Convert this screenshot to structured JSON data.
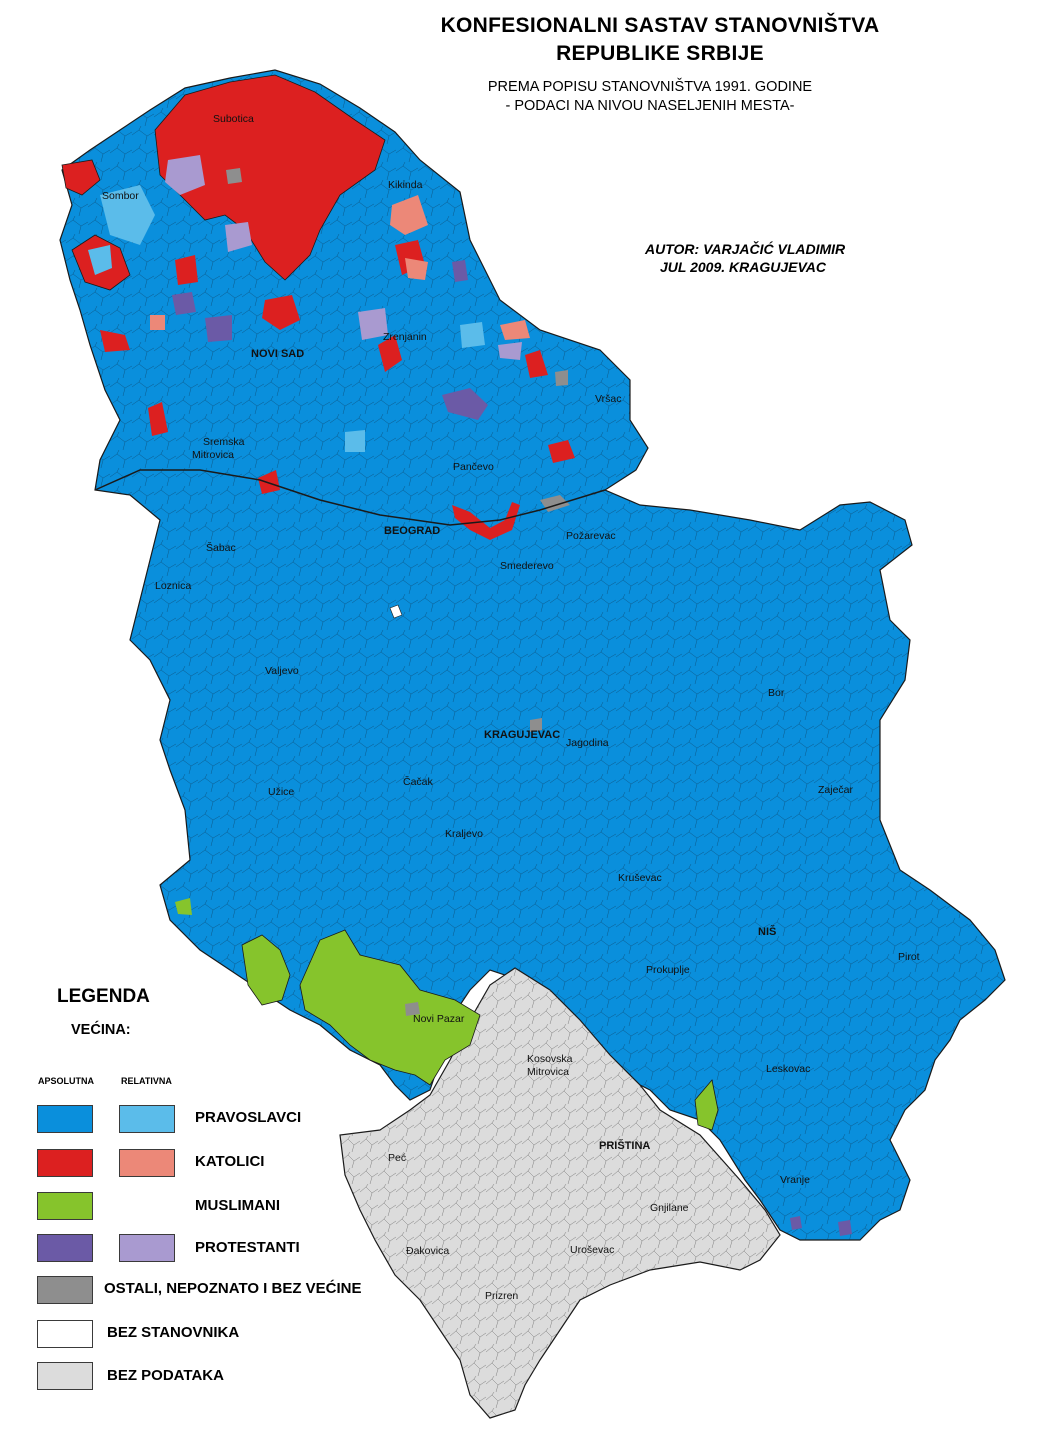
{
  "header": {
    "title_line1": "KONFESIONALNI SASTAV STANOVNIŠTVA",
    "title_line2": "REPUBLIKE SRBIJE",
    "subtitle_line1": "PREMA POPISU STANOVNIŠTVA 1991. GODINE",
    "subtitle_line2": "- PODACI NA NIVOU NASELJENIH MESTA-",
    "author_line1": "AUTOR: VARJAČIĆ VLADIMIR",
    "author_line2": "JUL 2009. KRAGUJEVAC"
  },
  "colors": {
    "pravoslavci_abs": "#0a8fdc",
    "pravoslavci_rel": "#5bbcea",
    "katolici_abs": "#dc2020",
    "katolici_rel": "#ec8878",
    "muslimani_abs": "#86c42c",
    "protestanti_abs": "#6b5aa6",
    "protestanti_rel": "#a99ad0",
    "ostali": "#8e8e8e",
    "bez_stanovnika": "#ffffff",
    "bez_podataka": "#dcdcdc",
    "border": "#1a1a1a"
  },
  "cities": {
    "subotica": "Subotica",
    "sombor": "Sombor",
    "kikinda": "Kikinda",
    "zrenjanin": "Zrenjanin",
    "novi_sad": "NOVI SAD",
    "vrsac": "Vršac",
    "sremska_1": "Sremska",
    "sremska_2": "Mitrovica",
    "pancevo": "Pančevo",
    "beograd": "BEOGRAD",
    "pozarevac": "Požarevac",
    "sabac": "Šabac",
    "smederevo": "Smederevo",
    "loznica": "Loznica",
    "valjevo": "Valjevo",
    "bor": "Bor",
    "kragujevac": "KRAGUJEVAC",
    "jagodina": "Jagodina",
    "zajecar": "Zaječar",
    "cacak": "Čačak",
    "uzice": "Užice",
    "kraljevo": "Kraljevo",
    "krusevac": "Kruševac",
    "nis": "NIŠ",
    "pirot": "Pirot",
    "prokuplje": "Prokuplje",
    "novi_pazar": "Novi Pazar",
    "kosovska_1": "Kosovska",
    "kosovska_2": "Mitrovica",
    "leskovac": "Leskovac",
    "pristina": "PRIŠTINA",
    "pec": "Peć",
    "vranje": "Vranje",
    "gnjilane": "Gnjilane",
    "djakovica": "Đakovica",
    "urosevac": "Uroševac",
    "prizren": "Prizren"
  },
  "legend": {
    "title": "LEGENDA",
    "subtitle": "VEĆINA:",
    "col_absolute": "APSOLUTNA",
    "col_relative": "RELATIVNA",
    "items": [
      {
        "label": "PRAVOSLAVCI"
      },
      {
        "label": "KATOLICI"
      },
      {
        "label": "MUSLIMANI"
      },
      {
        "label": "PROTESTANTI"
      },
      {
        "label": "OSTALI, NEPOZNATO I BEZ VEĆINE"
      },
      {
        "label": "BEZ STANOVNIKA"
      },
      {
        "label": "BEZ PODATAKA"
      }
    ]
  }
}
